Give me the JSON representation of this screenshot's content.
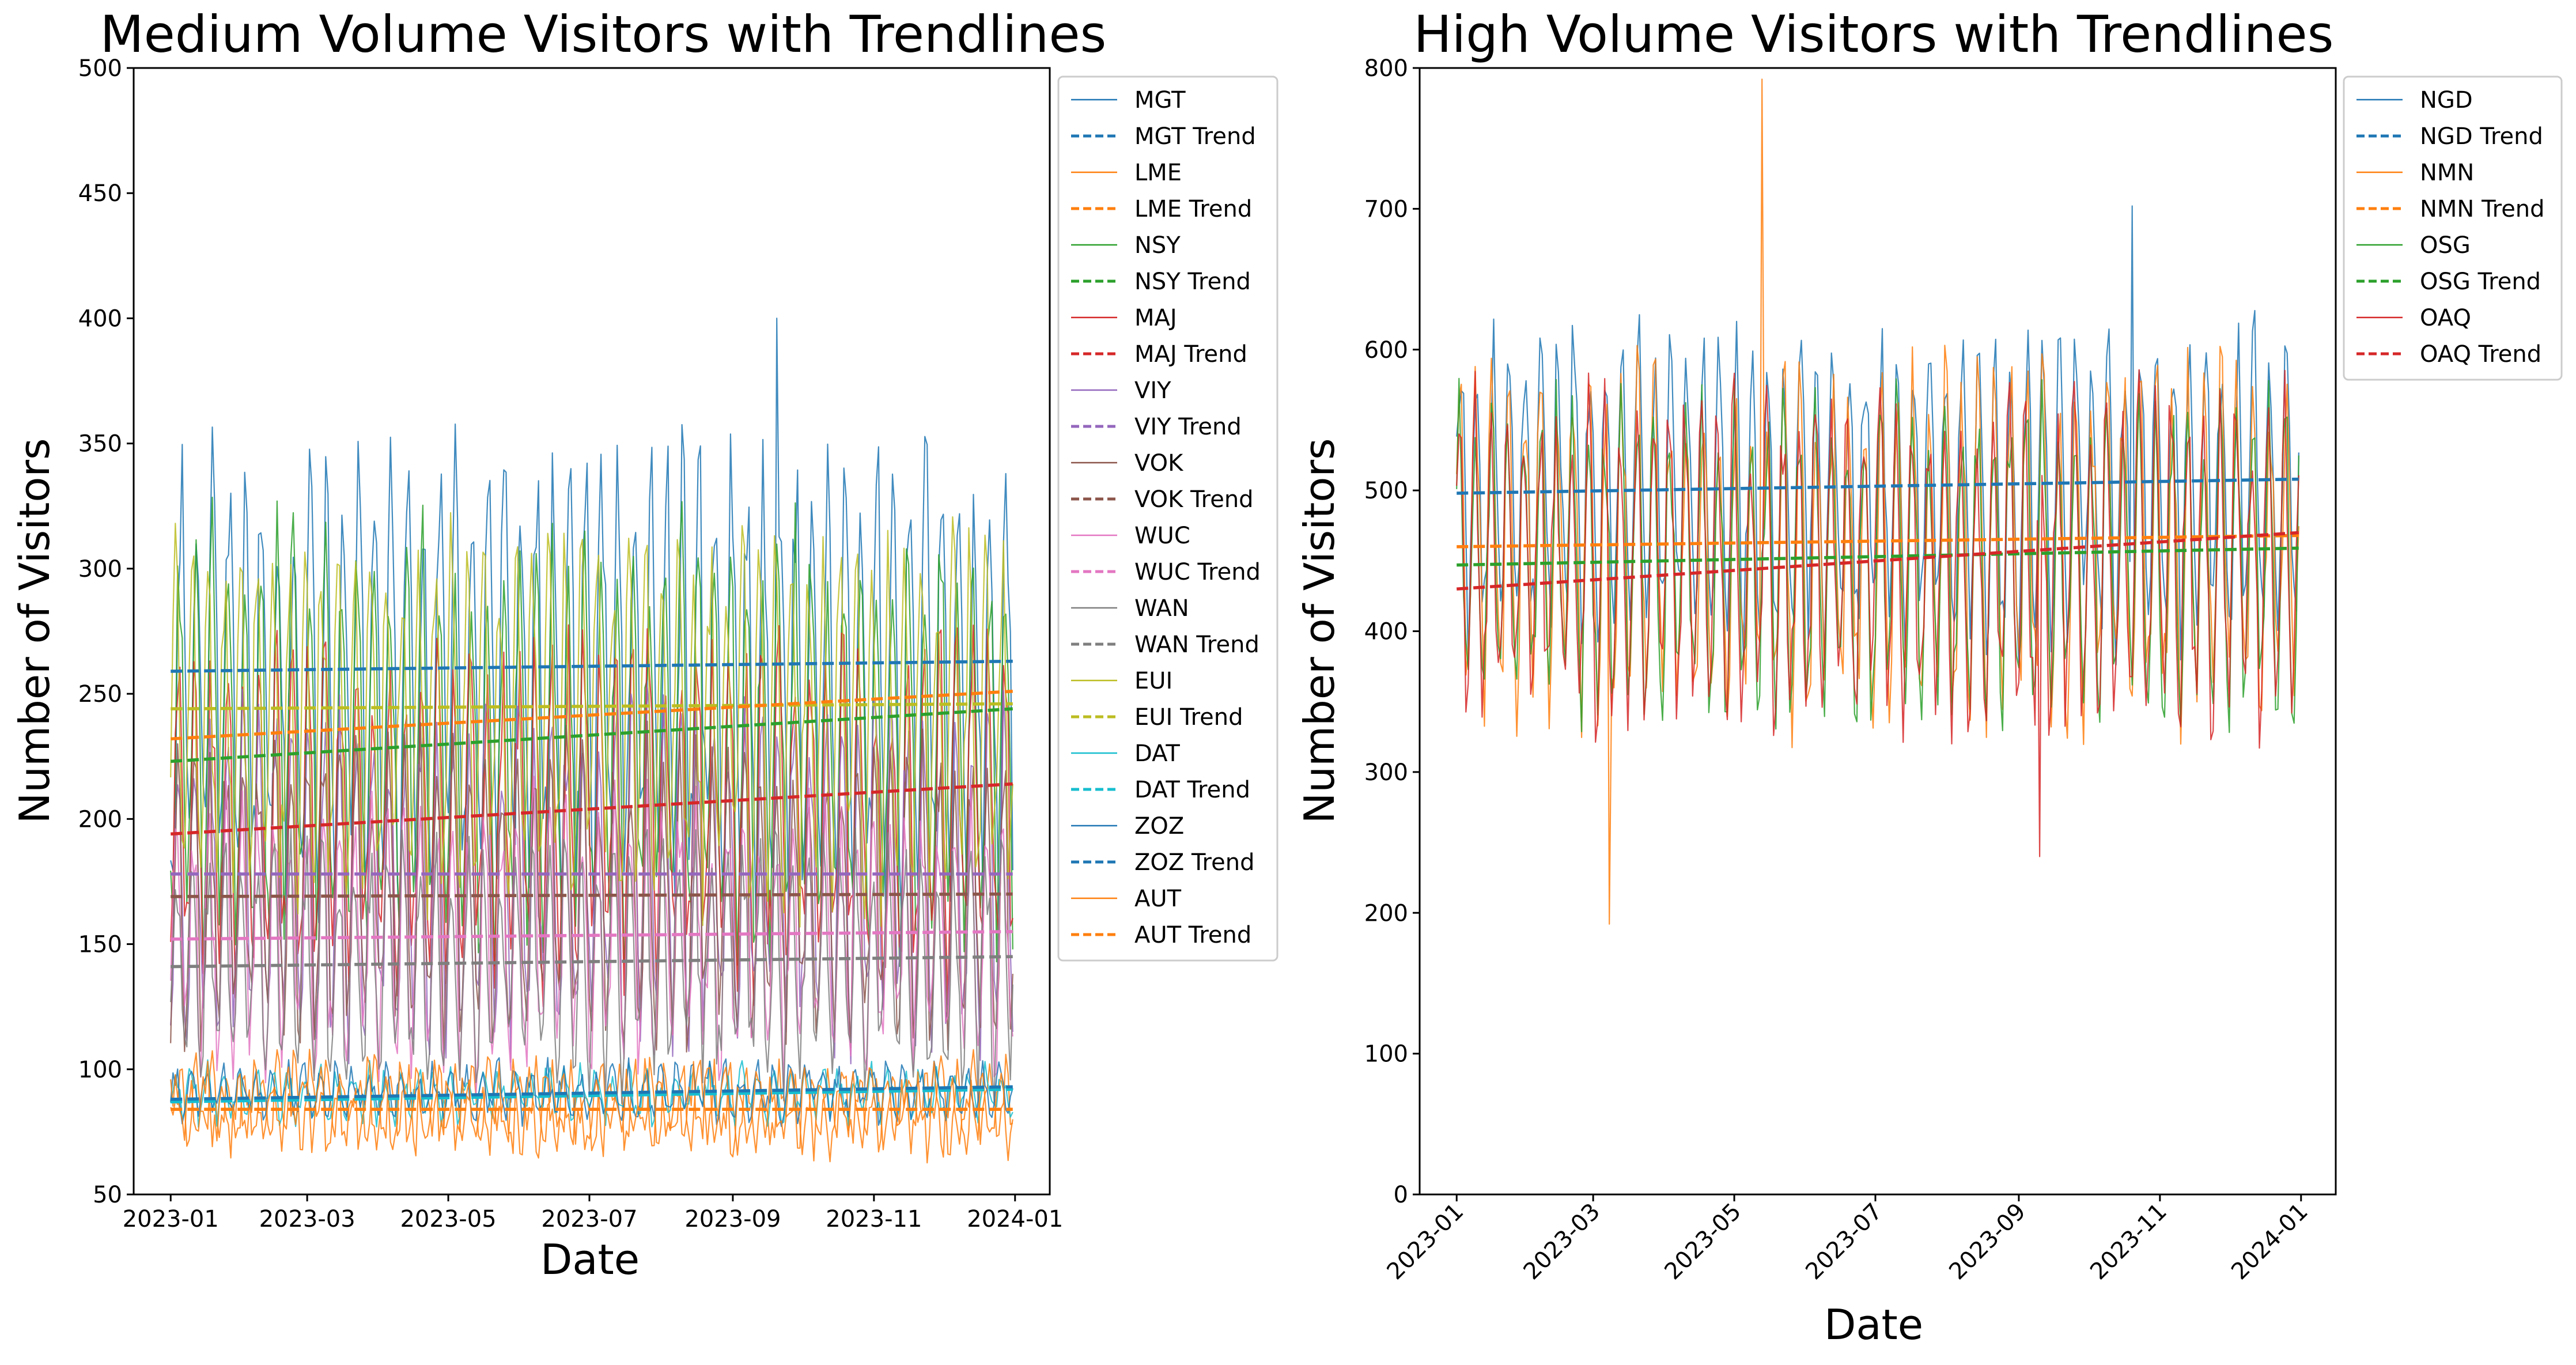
{
  "chart_data": [
    {
      "type": "line",
      "title": "Medium Volume Visitors with Trendlines",
      "xlabel": "Date",
      "ylabel": "Number of Visitors",
      "xlim": [
        "2022-12-16",
        "2024-01-16"
      ],
      "ylim": [
        50,
        500
      ],
      "x_ticks": [
        "2023-01",
        "2023-03",
        "2023-05",
        "2023-07",
        "2023-09",
        "2023-11",
        "2024-01"
      ],
      "y_ticks": [
        50,
        100,
        150,
        200,
        250,
        300,
        350,
        400,
        450,
        500
      ],
      "x_tick_rotation": 0,
      "legend": "outside-top-right",
      "grid": false,
      "series": [
        {
          "name": "MGT",
          "color": "#1f77b4",
          "base": 258,
          "amp": 75,
          "noise": 30,
          "peak": 400,
          "peak_x": "2023-09-20"
        },
        {
          "name": "LME",
          "color": "#ff7f0e",
          "base": 86,
          "amp": 12,
          "noise": 10
        },
        {
          "name": "NSY",
          "color": "#2ca02c",
          "base": 232,
          "amp": 70,
          "noise": 28
        },
        {
          "name": "MAJ",
          "color": "#d62728",
          "base": 203,
          "amp": 55,
          "noise": 25
        },
        {
          "name": "VIY",
          "color": "#9467bd",
          "base": 178,
          "amp": 55,
          "noise": 22
        },
        {
          "name": "VOK",
          "color": "#8c564b",
          "base": 170,
          "amp": 50,
          "noise": 20
        },
        {
          "name": "WUC",
          "color": "#e377c2",
          "base": 153,
          "amp": 45,
          "noise": 20
        },
        {
          "name": "WAN",
          "color": "#7f7f7f",
          "base": 143,
          "amp": 40,
          "noise": 18
        },
        {
          "name": "EUI",
          "color": "#bcbd22",
          "base": 240,
          "amp": 60,
          "noise": 25
        },
        {
          "name": "DAT",
          "color": "#17becf",
          "base": 90,
          "amp": 8,
          "noise": 6
        },
        {
          "name": "ZOZ",
          "color": "#1f77b4",
          "base": 91,
          "amp": 8,
          "noise": 6
        },
        {
          "name": "AUT",
          "color": "#ff7f0e",
          "base": 84,
          "amp": 12,
          "noise": 10
        }
      ],
      "trends": [
        {
          "name": "MGT Trend",
          "color": "#1f77b4",
          "start": 259,
          "end": 263
        },
        {
          "name": "LME Trend",
          "color": "#ff7f0e",
          "start": 84,
          "end": 84
        },
        {
          "name": "NSY Trend",
          "color": "#2ca02c",
          "start": 223,
          "end": 244
        },
        {
          "name": "MAJ Trend",
          "color": "#d62728",
          "start": 194,
          "end": 214
        },
        {
          "name": "VIY Trend",
          "color": "#9467bd",
          "start": 178,
          "end": 178
        },
        {
          "name": "VOK Trend",
          "color": "#8c564b",
          "start": 169,
          "end": 170
        },
        {
          "name": "WUC Trend",
          "color": "#e377c2",
          "start": 152,
          "end": 155
        },
        {
          "name": "WAN Trend",
          "color": "#7f7f7f",
          "start": 141,
          "end": 145
        },
        {
          "name": "EUI Trend",
          "color": "#bcbd22",
          "start": 244,
          "end": 246
        },
        {
          "name": "DAT Trend",
          "color": "#17becf",
          "start": 87,
          "end": 92
        },
        {
          "name": "ZOZ Trend",
          "color": "#1f77b4",
          "start": 88,
          "end": 93
        },
        {
          "name": "AUT Trend",
          "color": "#ff7f0e",
          "start": 232,
          "end": 251
        }
      ]
    },
    {
      "type": "line",
      "title": "High Volume Visitors with Trendlines",
      "xlabel": "Date",
      "ylabel": "Number of Visitors",
      "xlim": [
        "2022-12-16",
        "2024-01-16"
      ],
      "ylim": [
        0,
        800
      ],
      "x_ticks": [
        "2023-01",
        "2023-03",
        "2023-05",
        "2023-07",
        "2023-09",
        "2023-11",
        "2024-01"
      ],
      "y_ticks": [
        0,
        100,
        200,
        300,
        400,
        500,
        600,
        700,
        800
      ],
      "x_tick_rotation": 45,
      "legend": "outside-top-right",
      "grid": false,
      "series": [
        {
          "name": "NGD",
          "color": "#1f77b4",
          "base": 503,
          "amp": 95,
          "noise": 35,
          "peak": 702,
          "peak_x": "2023-10-20"
        },
        {
          "name": "NMN",
          "color": "#ff7f0e",
          "base": 462,
          "amp": 105,
          "noise": 45,
          "peak": 792,
          "peak_x": "2023-05-13",
          "dip": 192,
          "dip_x": "2023-03-08"
        },
        {
          "name": "OSG",
          "color": "#2ca02c",
          "base": 452,
          "amp": 95,
          "noise": 35
        },
        {
          "name": "OAQ",
          "color": "#d62728",
          "base": 450,
          "amp": 100,
          "noise": 40,
          "dip": 240,
          "dip_x": "2023-09-10"
        }
      ],
      "trends": [
        {
          "name": "NGD Trend",
          "color": "#1f77b4",
          "start": 498,
          "end": 508
        },
        {
          "name": "NMN Trend",
          "color": "#ff7f0e",
          "start": 460,
          "end": 468
        },
        {
          "name": "OSG Trend",
          "color": "#2ca02c",
          "start": 447,
          "end": 459
        },
        {
          "name": "OAQ Trend",
          "color": "#d62728",
          "start": 430,
          "end": 470
        }
      ]
    }
  ]
}
